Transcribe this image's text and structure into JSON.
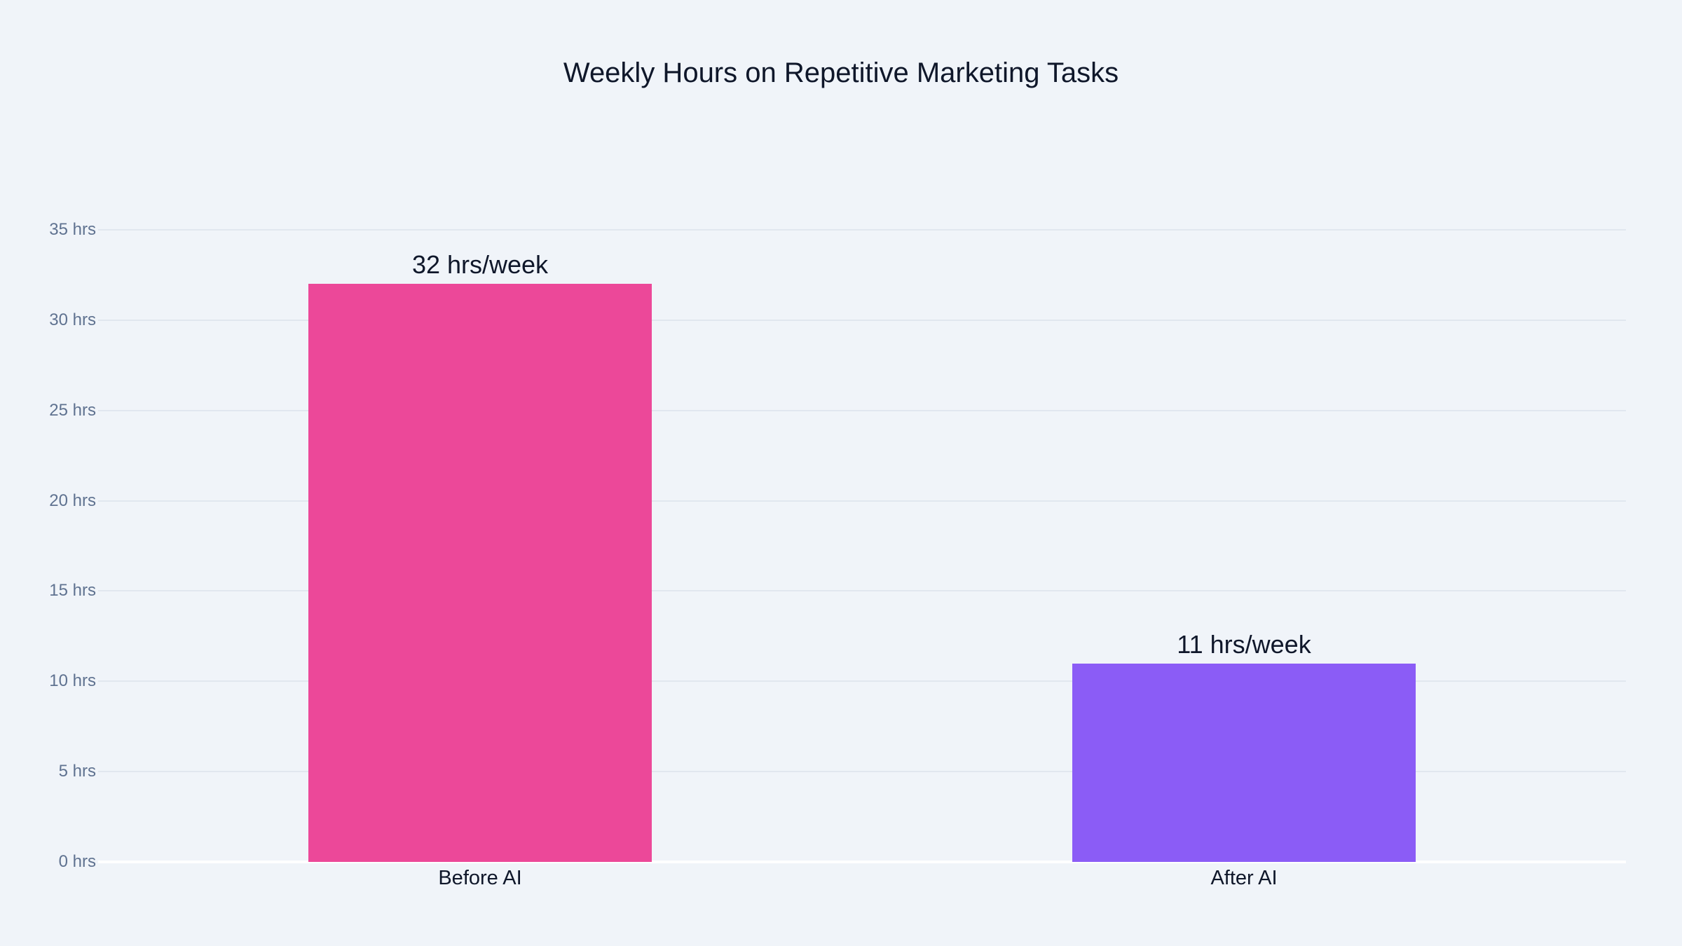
{
  "chart_data": {
    "type": "bar",
    "title": "Weekly Hours on Repetitive Marketing Tasks",
    "categories": [
      "Before AI",
      "After AI"
    ],
    "values": [
      32,
      11
    ],
    "data_labels": [
      "32 hrs/week",
      "11 hrs/week"
    ],
    "colors": [
      "#ec4899",
      "#8b5cf6"
    ],
    "xlabel": "",
    "ylabel": "",
    "ylim": [
      0,
      35
    ],
    "yticks": [
      0,
      5,
      10,
      15,
      20,
      25,
      30,
      35
    ],
    "ytick_labels": [
      "0 hrs",
      "5 hrs",
      "10 hrs",
      "15 hrs",
      "20 hrs",
      "25 hrs",
      "30 hrs",
      "35 hrs"
    ],
    "grid": true,
    "legend": null
  },
  "style": {
    "background": "#f0f4f9",
    "grid_color": "#e1e7ef",
    "text_color": "#0f172a",
    "tick_color": "#5f7290"
  }
}
